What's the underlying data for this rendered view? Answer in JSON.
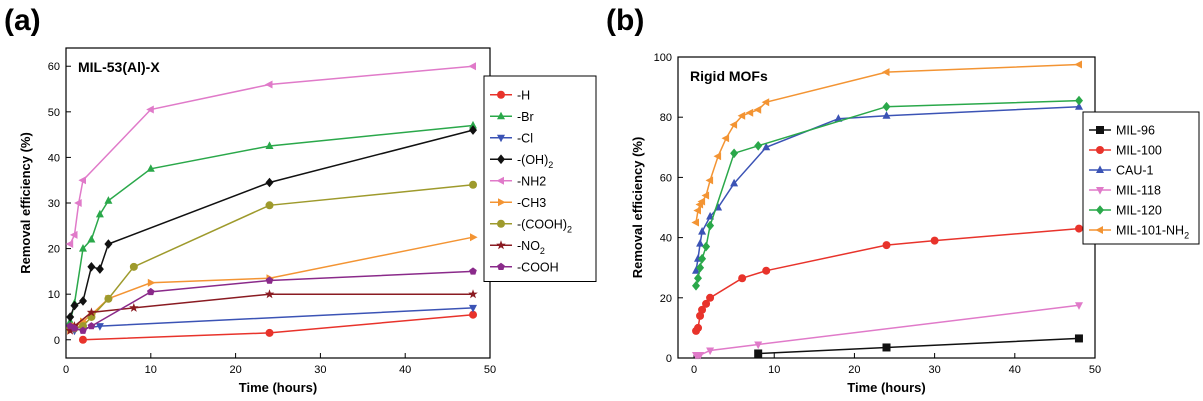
{
  "panels": {
    "a": {
      "label": "(a)"
    },
    "b": {
      "label": "(b)"
    }
  },
  "chart_data": [
    {
      "type": "line",
      "title": "MIL-53(Al)-X",
      "xlabel": "Time (hours)",
      "ylabel": "Removal efficiency (%)",
      "xlim": [
        0,
        50
      ],
      "ylim": [
        -4,
        64
      ],
      "xticks": [
        0,
        10,
        20,
        30,
        40,
        50
      ],
      "yticks": [
        0,
        10,
        20,
        30,
        40,
        50,
        60
      ],
      "grid": false,
      "legend_position": "right",
      "series": [
        {
          "name": "-H",
          "color": "#e8332b",
          "marker": "circle",
          "x": [
            2,
            24,
            48
          ],
          "y": [
            0,
            1.5,
            5.5
          ]
        },
        {
          "name": "-Br",
          "color": "#2aa84a",
          "marker": "triangle-up",
          "x": [
            0.5,
            1,
            2,
            3,
            4,
            5,
            10,
            24,
            48
          ],
          "y": [
            4,
            8,
            20,
            22,
            27.5,
            30.5,
            37.5,
            42.5,
            47
          ]
        },
        {
          "name": "-Cl",
          "color": "#3b53b5",
          "marker": "triangle-down",
          "x": [
            0.5,
            1,
            2,
            4,
            48
          ],
          "y": [
            2.5,
            2,
            2.5,
            3,
            7
          ]
        },
        {
          "name": "-(OH)",
          "sub": "2",
          "color": "#111111",
          "marker": "diamond",
          "x": [
            0.5,
            1,
            2,
            3,
            4,
            5,
            24,
            48
          ],
          "y": [
            5,
            7.5,
            8.5,
            16,
            15.5,
            21,
            34.5,
            46
          ]
        },
        {
          "name": "-NH2",
          "color": "#e07ac9",
          "marker": "triangle-left",
          "x": [
            0.5,
            1,
            1.5,
            2,
            10,
            24,
            48
          ],
          "y": [
            21,
            23,
            30,
            35,
            50.5,
            56,
            60
          ]
        },
        {
          "name": "-CH3",
          "color": "#f39433",
          "marker": "triangle-right",
          "x": [
            0.5,
            1,
            2,
            3,
            5,
            10,
            24,
            48
          ],
          "y": [
            2,
            3,
            4,
            5.5,
            9,
            12.5,
            13.5,
            22.5
          ]
        },
        {
          "name": "-(COOH)",
          "sub": "2",
          "color": "#9e9a2c",
          "marker": "circle",
          "x": [
            0.5,
            1,
            2,
            3,
            5,
            8,
            24,
            48
          ],
          "y": [
            2.5,
            2.5,
            3,
            5,
            9,
            16,
            29.5,
            34
          ]
        },
        {
          "name": "-NO",
          "sub": "2",
          "color": "#8a1b22",
          "marker": "star",
          "x": [
            0.5,
            1,
            3,
            8,
            24,
            48
          ],
          "y": [
            2,
            3,
            6,
            7,
            10,
            10
          ]
        },
        {
          "name": "-COOH",
          "color": "#8a2a8a",
          "marker": "pentagon",
          "x": [
            0.5,
            1,
            2,
            3,
            10,
            24,
            48
          ],
          "y": [
            3,
            2.5,
            2,
            3,
            10.5,
            13,
            15
          ]
        }
      ]
    },
    {
      "type": "line",
      "title": "Rigid MOFs",
      "xlabel": "Time (hours)",
      "ylabel": "Removal efficiency (%)",
      "xlim": [
        -2,
        50
      ],
      "ylim": [
        0,
        100
      ],
      "xticks": [
        0,
        10,
        20,
        30,
        40,
        50
      ],
      "yticks": [
        0,
        20,
        40,
        60,
        80,
        100
      ],
      "grid": false,
      "legend_position": "right",
      "series": [
        {
          "name": "MIL-96",
          "color": "#111111",
          "marker": "square",
          "x": [
            8,
            24,
            48
          ],
          "y": [
            1.5,
            3.5,
            6.5
          ]
        },
        {
          "name": "MIL-100",
          "color": "#e8332b",
          "marker": "circle",
          "x": [
            0.25,
            0.5,
            0.75,
            1,
            1.5,
            2,
            6,
            9,
            24,
            30,
            48
          ],
          "y": [
            9,
            10,
            14,
            16,
            18,
            20,
            26.5,
            29,
            37.5,
            39,
            43
          ]
        },
        {
          "name": "CAU-1",
          "color": "#3b53b5",
          "marker": "triangle-up",
          "x": [
            0.25,
            0.5,
            0.75,
            1,
            2,
            3,
            5,
            9,
            18,
            24,
            48
          ],
          "y": [
            29,
            33,
            38,
            42,
            47,
            50,
            58,
            70,
            79.5,
            80.5,
            83.5
          ]
        },
        {
          "name": "MIL-118",
          "color": "#e07ac9",
          "marker": "triangle-down",
          "x": [
            0.25,
            0.5,
            0.75,
            2,
            8,
            48
          ],
          "y": [
            1,
            1,
            1,
            2.5,
            4.5,
            17.5
          ]
        },
        {
          "name": "MIL-120",
          "color": "#2aa84a",
          "marker": "diamond",
          "x": [
            0.25,
            0.5,
            0.75,
            1,
            1.5,
            2,
            5,
            8,
            24,
            48
          ],
          "y": [
            24,
            26.5,
            30,
            33,
            37,
            44,
            68,
            70.5,
            83.5,
            85.5
          ]
        },
        {
          "name": "MIL-101-NH",
          "sub": "2",
          "color": "#f39433",
          "marker": "triangle-left",
          "x": [
            0.25,
            0.5,
            0.75,
            1,
            1.5,
            2,
            3,
            4,
            5,
            6,
            7,
            8,
            9,
            24,
            48
          ],
          "y": [
            45,
            49,
            51,
            52,
            54,
            59,
            67,
            73,
            77.5,
            80.5,
            81.5,
            82.5,
            85,
            95,
            97.5
          ]
        }
      ]
    }
  ]
}
